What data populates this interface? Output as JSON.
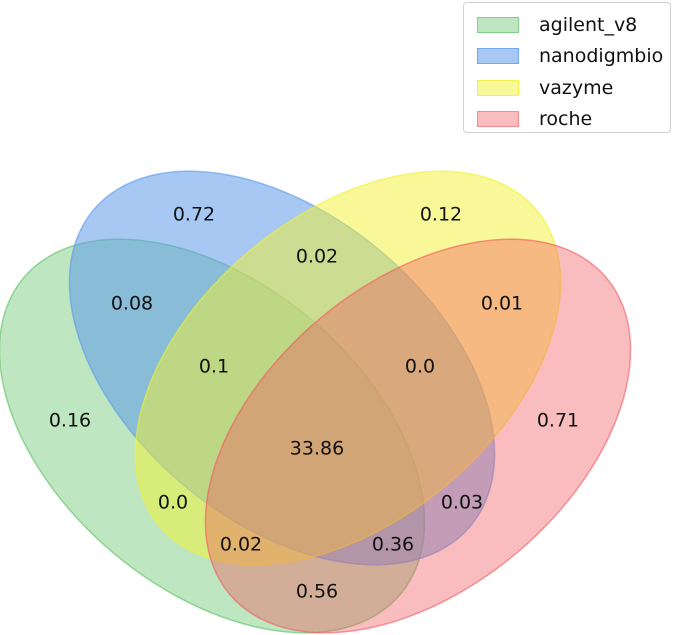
{
  "chart_data": {
    "type": "venn",
    "sets": [
      {
        "name": "agilent_v8",
        "color": "#5cc062"
      },
      {
        "name": "nanodigmbio",
        "color": "#5c9bea"
      },
      {
        "name": "vazyme",
        "color": "#f1f131"
      },
      {
        "name": "roche",
        "color": "#f15a60"
      }
    ],
    "regions": [
      {
        "sets": "A",
        "value": "0.16"
      },
      {
        "sets": "N",
        "value": "0.72"
      },
      {
        "sets": "V",
        "value": "0.12"
      },
      {
        "sets": "R",
        "value": "0.71"
      },
      {
        "sets": "AN",
        "value": "0.08"
      },
      {
        "sets": "NV",
        "value": "0.02"
      },
      {
        "sets": "VR",
        "value": "0.01"
      },
      {
        "sets": "AR",
        "value": "0.56"
      },
      {
        "sets": "ANV",
        "value": "0.1"
      },
      {
        "sets": "NVR",
        "value": "0.0"
      },
      {
        "sets": "AV",
        "value": "0.0"
      },
      {
        "sets": "NR",
        "value": "0.03"
      },
      {
        "sets": "AVR",
        "value": "0.02"
      },
      {
        "sets": "ANR",
        "value": "0.36"
      },
      {
        "sets": "ANVR",
        "value": "33.86"
      }
    ],
    "legend_placement": "top-right"
  }
}
